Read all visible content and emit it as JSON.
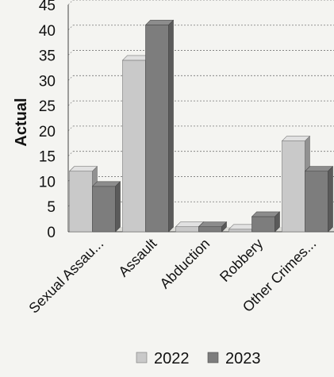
{
  "chart_data": {
    "type": "bar",
    "title": "",
    "xlabel": "",
    "ylabel": "Actual",
    "ylim": [
      0,
      45
    ],
    "yticks": [
      0,
      5,
      10,
      15,
      20,
      25,
      30,
      35,
      40,
      45
    ],
    "grid": true,
    "legend_position": "bottom",
    "style": "3d",
    "categories": [
      "Sexual Assau...",
      "Assault",
      "Abduction",
      "Robbery",
      "Other Crimes..."
    ],
    "series": [
      {
        "name": "2022",
        "color": "#c9c9c9",
        "values": [
          12,
          34,
          1,
          0.5,
          18
        ]
      },
      {
        "name": "2023",
        "color": "#7d7d7d",
        "values": [
          9,
          41,
          1,
          3,
          12
        ]
      }
    ]
  }
}
